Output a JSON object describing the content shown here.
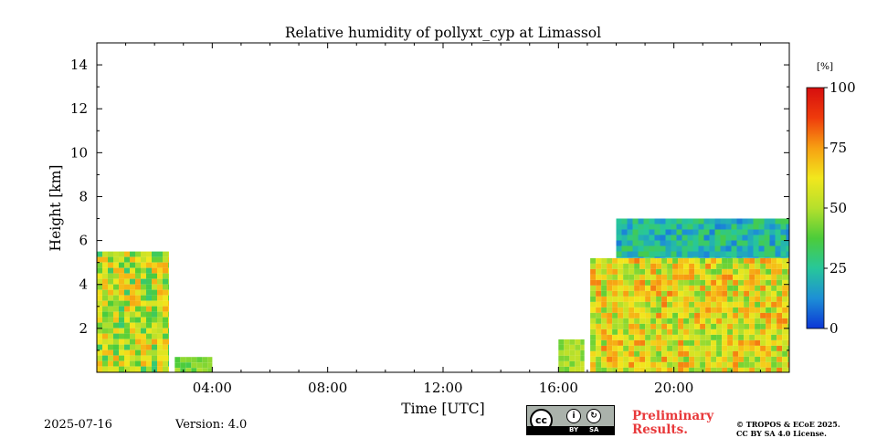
{
  "chart_data": {
    "type": "heatmap",
    "title": "Relative humidity of pollyxt_cyp at Limassol",
    "xlabel": "Time [UTC]",
    "ylabel": "Height [km]",
    "xlim_hours": [
      0,
      24
    ],
    "ylim_km": [
      0,
      15
    ],
    "x_tick_labels": [
      "04:00",
      "08:00",
      "12:00",
      "16:00",
      "20:00"
    ],
    "x_tick_hours": [
      4,
      8,
      12,
      16,
      20
    ],
    "y_ticks": [
      2,
      4,
      6,
      8,
      10,
      12,
      14
    ],
    "colorbar": {
      "unit": "[%]",
      "range": [
        0,
        100
      ],
      "ticks": [
        0,
        25,
        50,
        75,
        100
      ],
      "colormap": [
        "#0c36d6",
        "#1d8fd6",
        "#27c79a",
        "#4ccc3a",
        "#b5e02c",
        "#f2e71d",
        "#f7a012",
        "#ef3b0c",
        "#d60e0e"
      ]
    },
    "data_blocks": [
      {
        "t_start": 0.0,
        "t_end": 2.5,
        "bottom_km": 0.0,
        "top_km": 5.5,
        "rh_low": 30,
        "rh_high": 75
      },
      {
        "t_start": 2.7,
        "t_end": 4.0,
        "bottom_km": 0.0,
        "top_km": 0.7,
        "rh_low": 35,
        "rh_high": 50
      },
      {
        "t_start": 16.0,
        "t_end": 16.9,
        "bottom_km": 0.0,
        "top_km": 1.5,
        "rh_low": 40,
        "rh_high": 55
      },
      {
        "t_start": 17.1,
        "t_end": 24.0,
        "bottom_km": 0.0,
        "top_km": 5.2,
        "rh_low": 40,
        "rh_high": 80
      },
      {
        "t_start": 18.0,
        "t_end": 24.0,
        "bottom_km": 5.2,
        "top_km": 7.0,
        "rh_low": 10,
        "rh_high": 35
      }
    ]
  },
  "footer": {
    "date": "2025-07-16",
    "version": "Version: 4.0",
    "preliminary_line1": "Preliminary",
    "preliminary_line2": "Results.",
    "copyright_line1": "© TROPOS & ECoE 2025.",
    "copyright_line2": "CC BY SA 4.0 License.",
    "license_badge": {
      "cc": "cc",
      "by": "BY",
      "sa": "SA"
    }
  }
}
